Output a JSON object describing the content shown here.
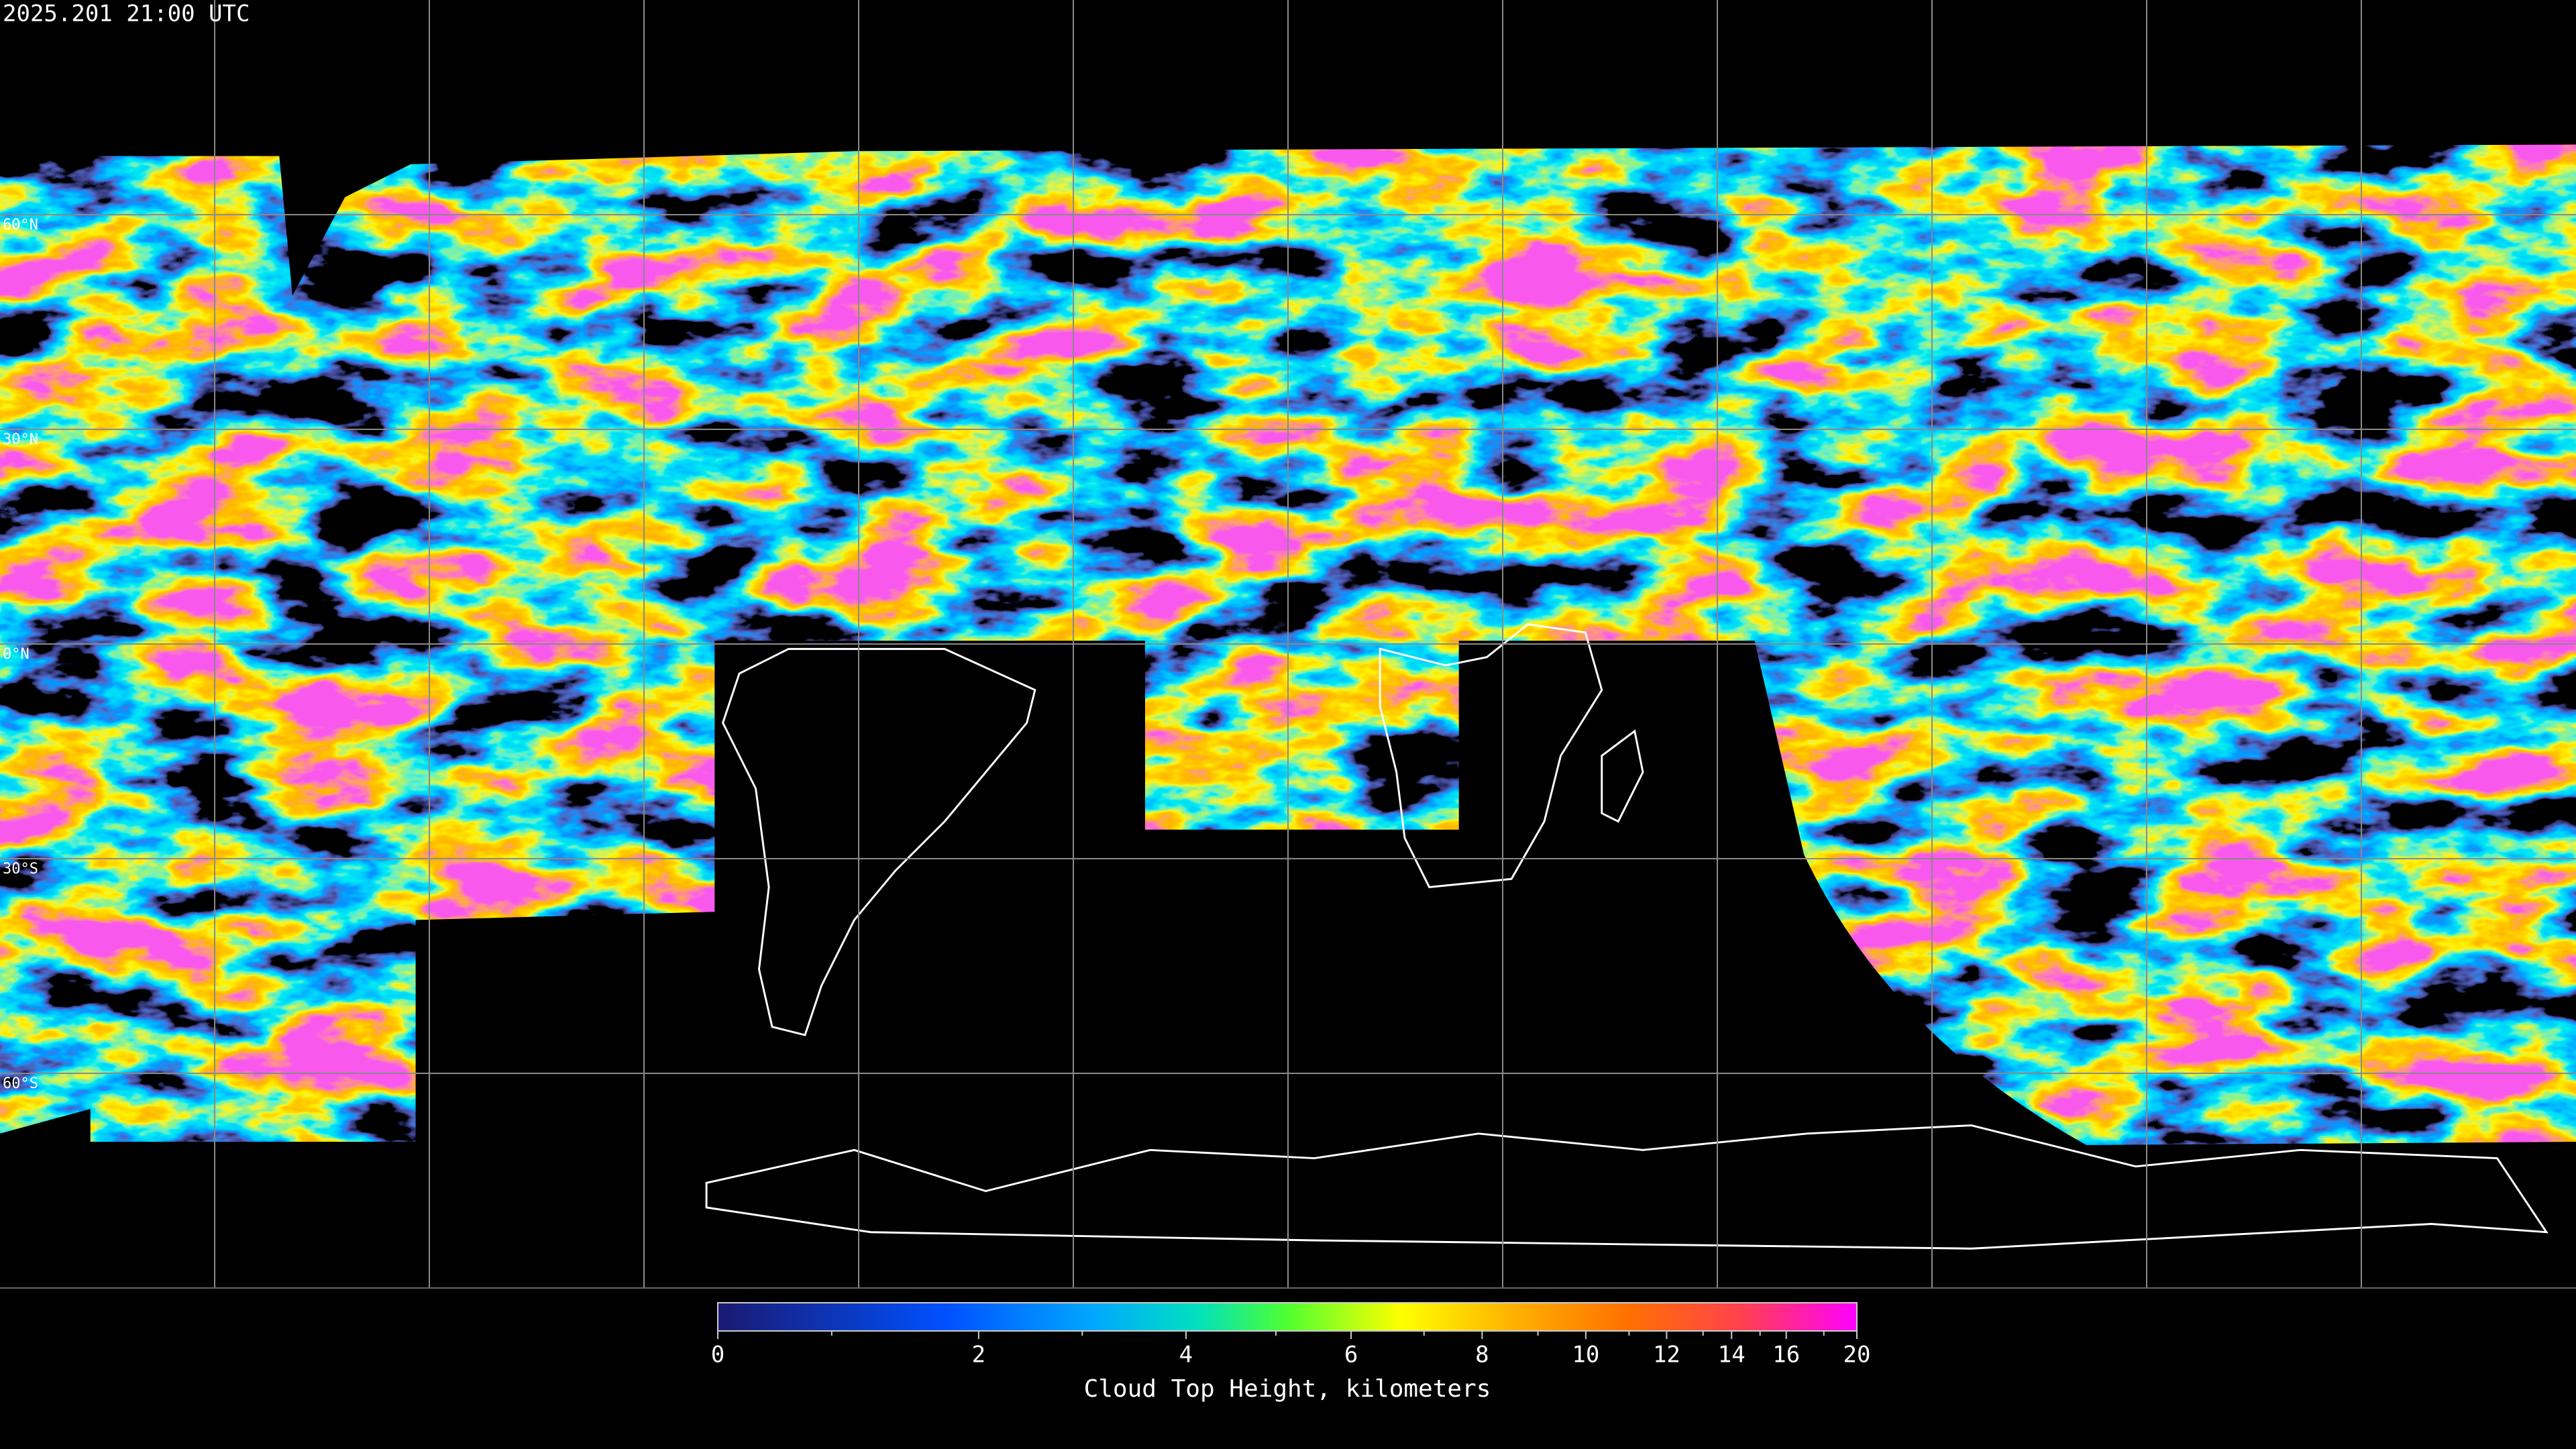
{
  "header": {
    "timestamp": "2025.201 21:00 UTC"
  },
  "map": {
    "lat_labels": [
      "60°N",
      "30°N",
      "0°N",
      "30°S",
      "60°S"
    ]
  },
  "colorbar": {
    "title": "Cloud Top Height, kilometers",
    "ticks": [
      0,
      2,
      4,
      6,
      8,
      10,
      12,
      14,
      16,
      20
    ]
  }
}
